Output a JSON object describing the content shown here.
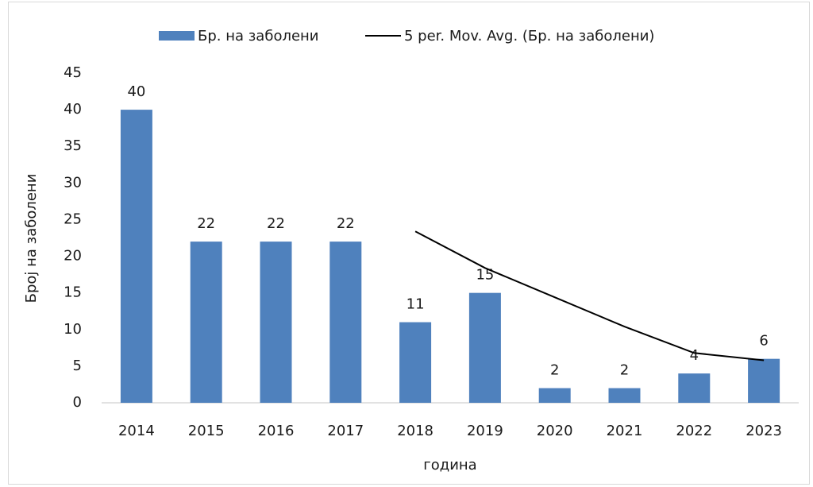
{
  "chart_data": {
    "type": "bar",
    "categories": [
      "2014",
      "2015",
      "2016",
      "2017",
      "2018",
      "2019",
      "2020",
      "2021",
      "2022",
      "2023"
    ],
    "series": [
      {
        "name": "Бр. на заболени",
        "type": "bar",
        "color": "#4f81bd",
        "values": [
          40,
          22,
          22,
          22,
          11,
          15,
          2,
          2,
          4,
          6
        ]
      },
      {
        "name": "5 per. Mov. Avg. (Бр. на заболени)",
        "type": "line",
        "color": "#000000",
        "values": [
          null,
          null,
          null,
          null,
          23.4,
          18.4,
          14.4,
          10.4,
          6.8,
          5.8
        ]
      }
    ],
    "ylim": [
      0,
      45
    ],
    "yticks": [
      0,
      5,
      10,
      15,
      20,
      25,
      30,
      35,
      40,
      45
    ],
    "y_label": "Број на заболени",
    "x_label": "година",
    "grid": false,
    "legend": "top",
    "data_labels": true
  }
}
